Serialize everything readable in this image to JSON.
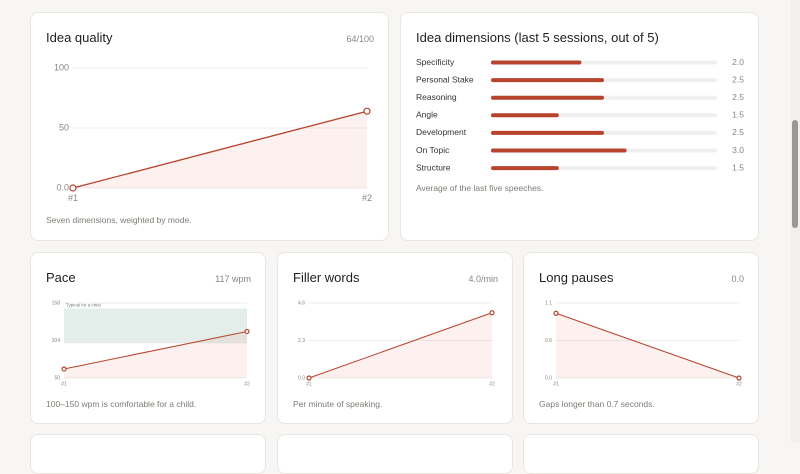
{
  "idea_quality": {
    "title": "Idea quality",
    "badge": "64/100",
    "caption": "Seven dimensions, weighted by mode.",
    "chart": {
      "type": "line",
      "categories": [
        "#1",
        "#2"
      ],
      "values": [
        0,
        64
      ],
      "color": "#b8432d",
      "ylim": [
        0,
        100
      ],
      "yticks": [
        {
          "value": 0,
          "label": "0.0"
        },
        50,
        100
      ],
      "grid": true
    }
  },
  "idea_dimensions": {
    "title": "Idea dimensions (last 5 sessions, out of 5)",
    "footer": "Average of the last five speeches.",
    "chart": {
      "type": "hbar",
      "categories": [
        "Specificity",
        "Personal Stake",
        "Reasoning",
        "Angle",
        "Development",
        "On Topic",
        "Structure"
      ],
      "values": [
        2.0,
        2.5,
        2.5,
        1.5,
        2.5,
        3.0,
        1.5
      ],
      "value_labels": [
        "2.0",
        "2.5",
        "2.5",
        "1.5",
        "2.5",
        "3.0",
        "1.5"
      ],
      "xlim": [
        0,
        5
      ],
      "color": "#b8432d"
    }
  },
  "pace": {
    "title": "Pace",
    "badge": "117 wpm",
    "caption": "100–150 wpm is comfortable for a child.",
    "chart": {
      "type": "line",
      "categories": [
        "#1",
        "#2"
      ],
      "values": [
        63,
        117
      ],
      "color": "#b8432d",
      "ylim": [
        50,
        158
      ],
      "yticks": [
        50,
        104,
        158
      ],
      "grid": true,
      "band": {
        "range": [
          100,
          150
        ],
        "label": "Typical for a child"
      }
    }
  },
  "filler_words": {
    "title": "Filler words",
    "badge": "4.0/min",
    "caption": "Per minute of speaking.",
    "chart": {
      "type": "line",
      "categories": [
        "#1",
        "#2"
      ],
      "values": [
        0,
        4.0
      ],
      "color": "#b8432d",
      "ylim": [
        0,
        4.6
      ],
      "yticks": [
        {
          "value": 0,
          "label": "0.0"
        },
        2.3,
        4.6
      ],
      "grid": true
    }
  },
  "long_pauses": {
    "title": "Long pauses",
    "badge": "0.0",
    "caption": "Gaps longer than 0.7 seconds.",
    "chart": {
      "type": "line",
      "categories": [
        "#1",
        "#2"
      ],
      "values": [
        0.95,
        0
      ],
      "color": "#b8432d",
      "ylim": [
        0,
        1.1
      ],
      "yticks": [
        {
          "value": 0,
          "label": "0.0"
        },
        {
          "value": 0.55,
          "label": "0.6"
        },
        1.1
      ],
      "grid": true
    }
  }
}
